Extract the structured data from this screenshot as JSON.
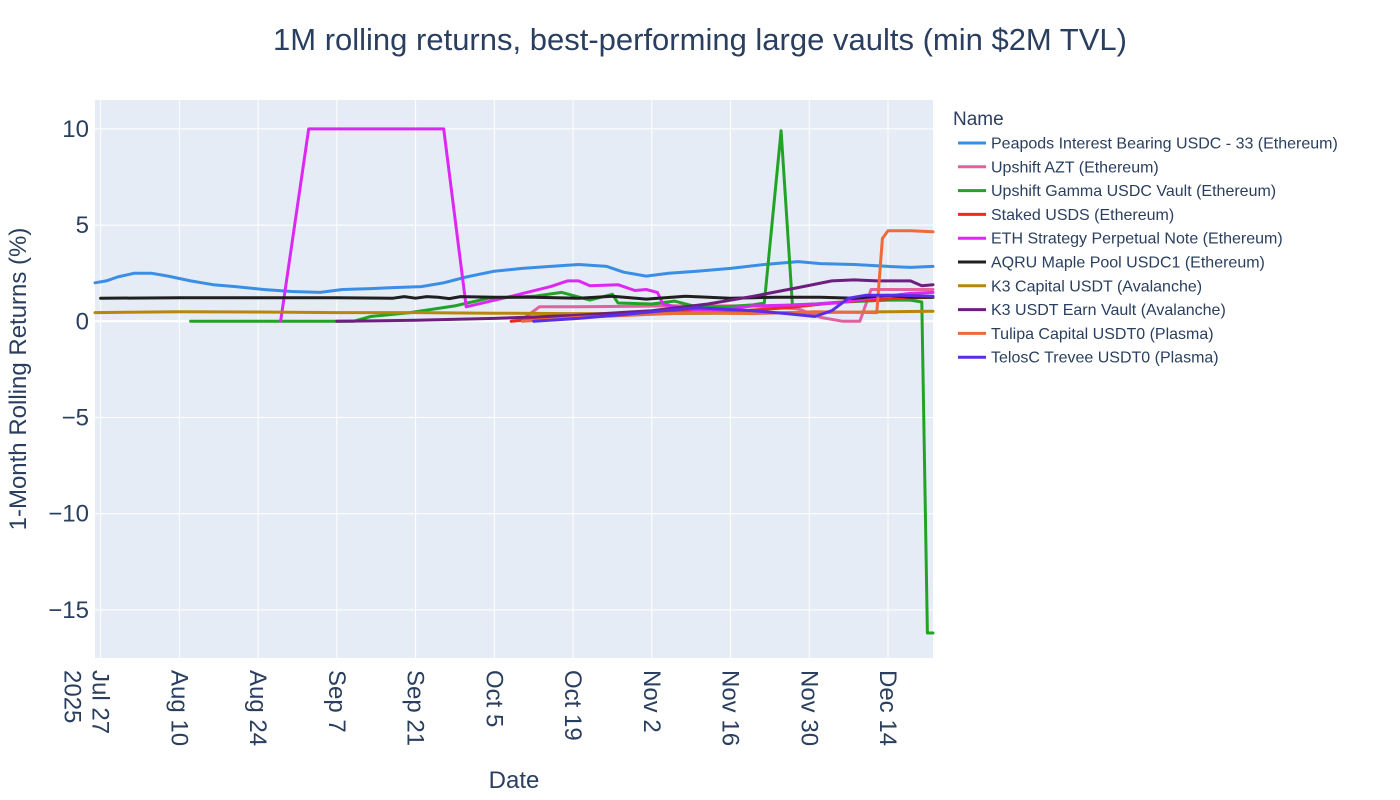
{
  "chart_data": {
    "type": "line",
    "title": "1M rolling returns, best-performing large vaults (min $2M TVL)",
    "xlabel": "Date",
    "ylabel": "1-Month Rolling Returns (%)",
    "x_axis": {
      "type": "date",
      "range": [
        "2025-07-26",
        "2025-12-22"
      ],
      "ticks": [
        {
          "date": "2025-07-27",
          "label": "Jul 27",
          "sublabel": "2025"
        },
        {
          "date": "2025-08-10",
          "label": "Aug 10"
        },
        {
          "date": "2025-08-24",
          "label": "Aug 24"
        },
        {
          "date": "2025-09-07",
          "label": "Sep 7"
        },
        {
          "date": "2025-09-21",
          "label": "Sep 21"
        },
        {
          "date": "2025-10-05",
          "label": "Oct 5"
        },
        {
          "date": "2025-10-19",
          "label": "Oct 19"
        },
        {
          "date": "2025-11-02",
          "label": "Nov 2"
        },
        {
          "date": "2025-11-16",
          "label": "Nov 16"
        },
        {
          "date": "2025-11-30",
          "label": "Nov 30"
        },
        {
          "date": "2025-12-14",
          "label": "Dec 14"
        }
      ]
    },
    "y_axis": {
      "range": [
        -17.5,
        11.5
      ],
      "ticks": [
        {
          "value": 10,
          "label": "10"
        },
        {
          "value": 5,
          "label": "5"
        },
        {
          "value": 0,
          "label": "0"
        },
        {
          "value": -5,
          "label": "−5"
        },
        {
          "value": -10,
          "label": "−10"
        },
        {
          "value": -15,
          "label": "−15"
        }
      ]
    },
    "grid": true,
    "legend": {
      "title": "Name",
      "placement": "right"
    },
    "series": [
      {
        "name": "Peapods Interest Bearing USDC - 33 (Ethereum)",
        "color": "#3a8ee6",
        "points": [
          [
            "2025-07-26",
            2.0
          ],
          [
            "2025-07-28",
            2.1
          ],
          [
            "2025-07-30",
            2.3
          ],
          [
            "2025-08-02",
            2.5
          ],
          [
            "2025-08-05",
            2.5
          ],
          [
            "2025-08-08",
            2.35
          ],
          [
            "2025-08-12",
            2.1
          ],
          [
            "2025-08-16",
            1.9
          ],
          [
            "2025-08-20",
            1.8
          ],
          [
            "2025-08-25",
            1.65
          ],
          [
            "2025-08-30",
            1.55
          ],
          [
            "2025-09-04",
            1.5
          ],
          [
            "2025-09-08",
            1.65
          ],
          [
            "2025-09-13",
            1.7
          ],
          [
            "2025-09-17",
            1.75
          ],
          [
            "2025-09-22",
            1.8
          ],
          [
            "2025-09-26",
            2.0
          ],
          [
            "2025-09-30",
            2.3
          ],
          [
            "2025-10-05",
            2.6
          ],
          [
            "2025-10-10",
            2.75
          ],
          [
            "2025-10-15",
            2.85
          ],
          [
            "2025-10-20",
            2.95
          ],
          [
            "2025-10-25",
            2.85
          ],
          [
            "2025-10-28",
            2.55
          ],
          [
            "2025-11-01",
            2.35
          ],
          [
            "2025-11-05",
            2.5
          ],
          [
            "2025-11-10",
            2.6
          ],
          [
            "2025-11-16",
            2.75
          ],
          [
            "2025-11-22",
            2.95
          ],
          [
            "2025-11-28",
            3.1
          ],
          [
            "2025-12-02",
            3.0
          ],
          [
            "2025-12-08",
            2.95
          ],
          [
            "2025-12-14",
            2.85
          ],
          [
            "2025-12-18",
            2.8
          ],
          [
            "2025-12-22",
            2.85
          ]
        ]
      },
      {
        "name": "Upshift AZT (Ethereum)",
        "color": "#e2619e",
        "points": [
          [
            "2025-10-08",
            0.0
          ],
          [
            "2025-10-10",
            0.1
          ],
          [
            "2025-10-13",
            0.75
          ],
          [
            "2025-10-20",
            0.75
          ],
          [
            "2025-11-05",
            0.8
          ],
          [
            "2025-11-20",
            0.8
          ],
          [
            "2025-11-28",
            0.65
          ],
          [
            "2025-12-02",
            0.2
          ],
          [
            "2025-12-06",
            0.0
          ],
          [
            "2025-12-09",
            0.0
          ],
          [
            "2025-12-11",
            1.65
          ],
          [
            "2025-12-22",
            1.65
          ]
        ]
      },
      {
        "name": "Upshift Gamma USDC Vault (Ethereum)",
        "color": "#23a326",
        "points": [
          [
            "2025-08-12",
            0.0
          ],
          [
            "2025-09-10",
            0.0
          ],
          [
            "2025-09-13",
            0.25
          ],
          [
            "2025-09-20",
            0.45
          ],
          [
            "2025-09-28",
            0.8
          ],
          [
            "2025-10-04",
            1.2
          ],
          [
            "2025-10-12",
            1.3
          ],
          [
            "2025-10-17",
            1.5
          ],
          [
            "2025-10-22",
            1.1
          ],
          [
            "2025-10-26",
            1.4
          ],
          [
            "2025-10-27",
            0.95
          ],
          [
            "2025-11-02",
            0.9
          ],
          [
            "2025-11-06",
            1.05
          ],
          [
            "2025-11-10",
            0.75
          ],
          [
            "2025-11-15",
            0.75
          ],
          [
            "2025-11-20",
            0.85
          ],
          [
            "2025-11-22",
            0.95
          ],
          [
            "2025-11-25",
            9.9
          ],
          [
            "2025-11-27",
            0.85
          ],
          [
            "2025-12-01",
            0.9
          ],
          [
            "2025-12-06",
            1.0
          ],
          [
            "2025-12-14",
            1.1
          ],
          [
            "2025-12-18",
            1.1
          ],
          [
            "2025-12-20",
            1.0
          ],
          [
            "2025-12-21",
            -16.2
          ],
          [
            "2025-12-22",
            -16.2
          ]
        ]
      },
      {
        "name": "Staked USDS (Ethereum)",
        "color": "#ee2a1c",
        "points": [
          [
            "2025-10-08",
            0.0
          ],
          [
            "2025-10-14",
            0.15
          ],
          [
            "2025-10-22",
            0.35
          ],
          [
            "2025-11-01",
            0.5
          ],
          [
            "2025-11-10",
            0.6
          ],
          [
            "2025-11-18",
            0.55
          ],
          [
            "2025-11-26",
            0.7
          ],
          [
            "2025-12-04",
            0.95
          ],
          [
            "2025-12-10",
            1.1
          ],
          [
            "2025-12-16",
            1.2
          ],
          [
            "2025-12-22",
            1.25
          ]
        ]
      },
      {
        "name": "ETH Strategy Perpetual Note (Ethereum)",
        "color": "#dc28f2",
        "points": [
          [
            "2025-08-28",
            0.0
          ],
          [
            "2025-09-02",
            10.0
          ],
          [
            "2025-09-26",
            10.0
          ],
          [
            "2025-09-30",
            0.75
          ],
          [
            "2025-10-08",
            1.3
          ],
          [
            "2025-10-15",
            1.8
          ],
          [
            "2025-10-18",
            2.1
          ],
          [
            "2025-10-20",
            2.1
          ],
          [
            "2025-10-22",
            1.85
          ],
          [
            "2025-10-27",
            1.9
          ],
          [
            "2025-10-30",
            1.6
          ],
          [
            "2025-11-01",
            1.65
          ],
          [
            "2025-11-03",
            1.5
          ],
          [
            "2025-11-04",
            0.9
          ],
          [
            "2025-11-08",
            0.65
          ],
          [
            "2025-11-13",
            0.55
          ],
          [
            "2025-11-20",
            0.8
          ],
          [
            "2025-11-28",
            0.85
          ],
          [
            "2025-12-05",
            0.95
          ],
          [
            "2025-12-12",
            1.25
          ],
          [
            "2025-12-18",
            1.45
          ],
          [
            "2025-12-22",
            1.5
          ]
        ]
      },
      {
        "name": "AQRU Maple Pool USDC1 (Ethereum)",
        "color": "#1f1f1f",
        "points": [
          [
            "2025-07-27",
            1.2
          ],
          [
            "2025-08-10",
            1.22
          ],
          [
            "2025-08-24",
            1.22
          ],
          [
            "2025-09-07",
            1.22
          ],
          [
            "2025-09-17",
            1.2
          ],
          [
            "2025-09-19",
            1.28
          ],
          [
            "2025-09-21",
            1.2
          ],
          [
            "2025-09-23",
            1.28
          ],
          [
            "2025-09-25",
            1.25
          ],
          [
            "2025-09-27",
            1.18
          ],
          [
            "2025-09-29",
            1.28
          ],
          [
            "2025-10-05",
            1.25
          ],
          [
            "2025-10-12",
            1.25
          ],
          [
            "2025-10-20",
            1.2
          ],
          [
            "2025-10-26",
            1.3
          ],
          [
            "2025-11-01",
            1.15
          ],
          [
            "2025-11-08",
            1.3
          ],
          [
            "2025-11-16",
            1.2
          ],
          [
            "2025-11-24",
            1.25
          ],
          [
            "2025-12-02",
            1.25
          ],
          [
            "2025-12-08",
            1.2
          ],
          [
            "2025-12-14",
            1.35
          ],
          [
            "2025-12-18",
            1.25
          ],
          [
            "2025-12-22",
            1.25
          ]
        ]
      },
      {
        "name": "K3 Capital USDT (Avalanche)",
        "color": "#b8860b",
        "points": [
          [
            "2025-07-26",
            0.45
          ],
          [
            "2025-08-10",
            0.5
          ],
          [
            "2025-08-24",
            0.48
          ],
          [
            "2025-09-07",
            0.45
          ],
          [
            "2025-09-21",
            0.45
          ],
          [
            "2025-10-05",
            0.42
          ],
          [
            "2025-10-19",
            0.4
          ],
          [
            "2025-11-02",
            0.4
          ],
          [
            "2025-11-16",
            0.42
          ],
          [
            "2025-11-30",
            0.45
          ],
          [
            "2025-12-14",
            0.5
          ],
          [
            "2025-12-22",
            0.52
          ]
        ]
      },
      {
        "name": "K3 USDT Earn Vault (Avalanche)",
        "color": "#6d1f7e",
        "points": [
          [
            "2025-09-07",
            0.0
          ],
          [
            "2025-09-21",
            0.05
          ],
          [
            "2025-10-05",
            0.15
          ],
          [
            "2025-10-19",
            0.3
          ],
          [
            "2025-11-02",
            0.55
          ],
          [
            "2025-11-12",
            0.9
          ],
          [
            "2025-11-20",
            1.3
          ],
          [
            "2025-11-28",
            1.75
          ],
          [
            "2025-12-04",
            2.1
          ],
          [
            "2025-12-08",
            2.15
          ],
          [
            "2025-12-12",
            2.1
          ],
          [
            "2025-12-18",
            2.1
          ],
          [
            "2025-12-20",
            1.85
          ],
          [
            "2025-12-22",
            1.9
          ]
        ]
      },
      {
        "name": "Tulipa Capital USDT0 (Plasma)",
        "color": "#ee6a3d",
        "points": [
          [
            "2025-10-10",
            0.0
          ],
          [
            "2025-10-20",
            0.2
          ],
          [
            "2025-11-01",
            0.35
          ],
          [
            "2025-11-10",
            0.45
          ],
          [
            "2025-11-20",
            0.4
          ],
          [
            "2025-12-01",
            0.5
          ],
          [
            "2025-12-12",
            0.45
          ],
          [
            "2025-12-13",
            4.3
          ],
          [
            "2025-12-14",
            4.7
          ],
          [
            "2025-12-18",
            4.7
          ],
          [
            "2025-12-22",
            4.65
          ]
        ]
      },
      {
        "name": "TelosC Trevee USDT0 (Plasma)",
        "color": "#5a2ee8",
        "points": [
          [
            "2025-10-12",
            0.0
          ],
          [
            "2025-10-20",
            0.15
          ],
          [
            "2025-10-28",
            0.35
          ],
          [
            "2025-11-04",
            0.55
          ],
          [
            "2025-11-10",
            0.7
          ],
          [
            "2025-11-20",
            0.55
          ],
          [
            "2025-11-26",
            0.4
          ],
          [
            "2025-12-01",
            0.25
          ],
          [
            "2025-12-04",
            0.55
          ],
          [
            "2025-12-07",
            1.2
          ],
          [
            "2025-12-10",
            1.35
          ],
          [
            "2025-12-16",
            1.35
          ],
          [
            "2025-12-22",
            1.3
          ]
        ]
      }
    ]
  }
}
